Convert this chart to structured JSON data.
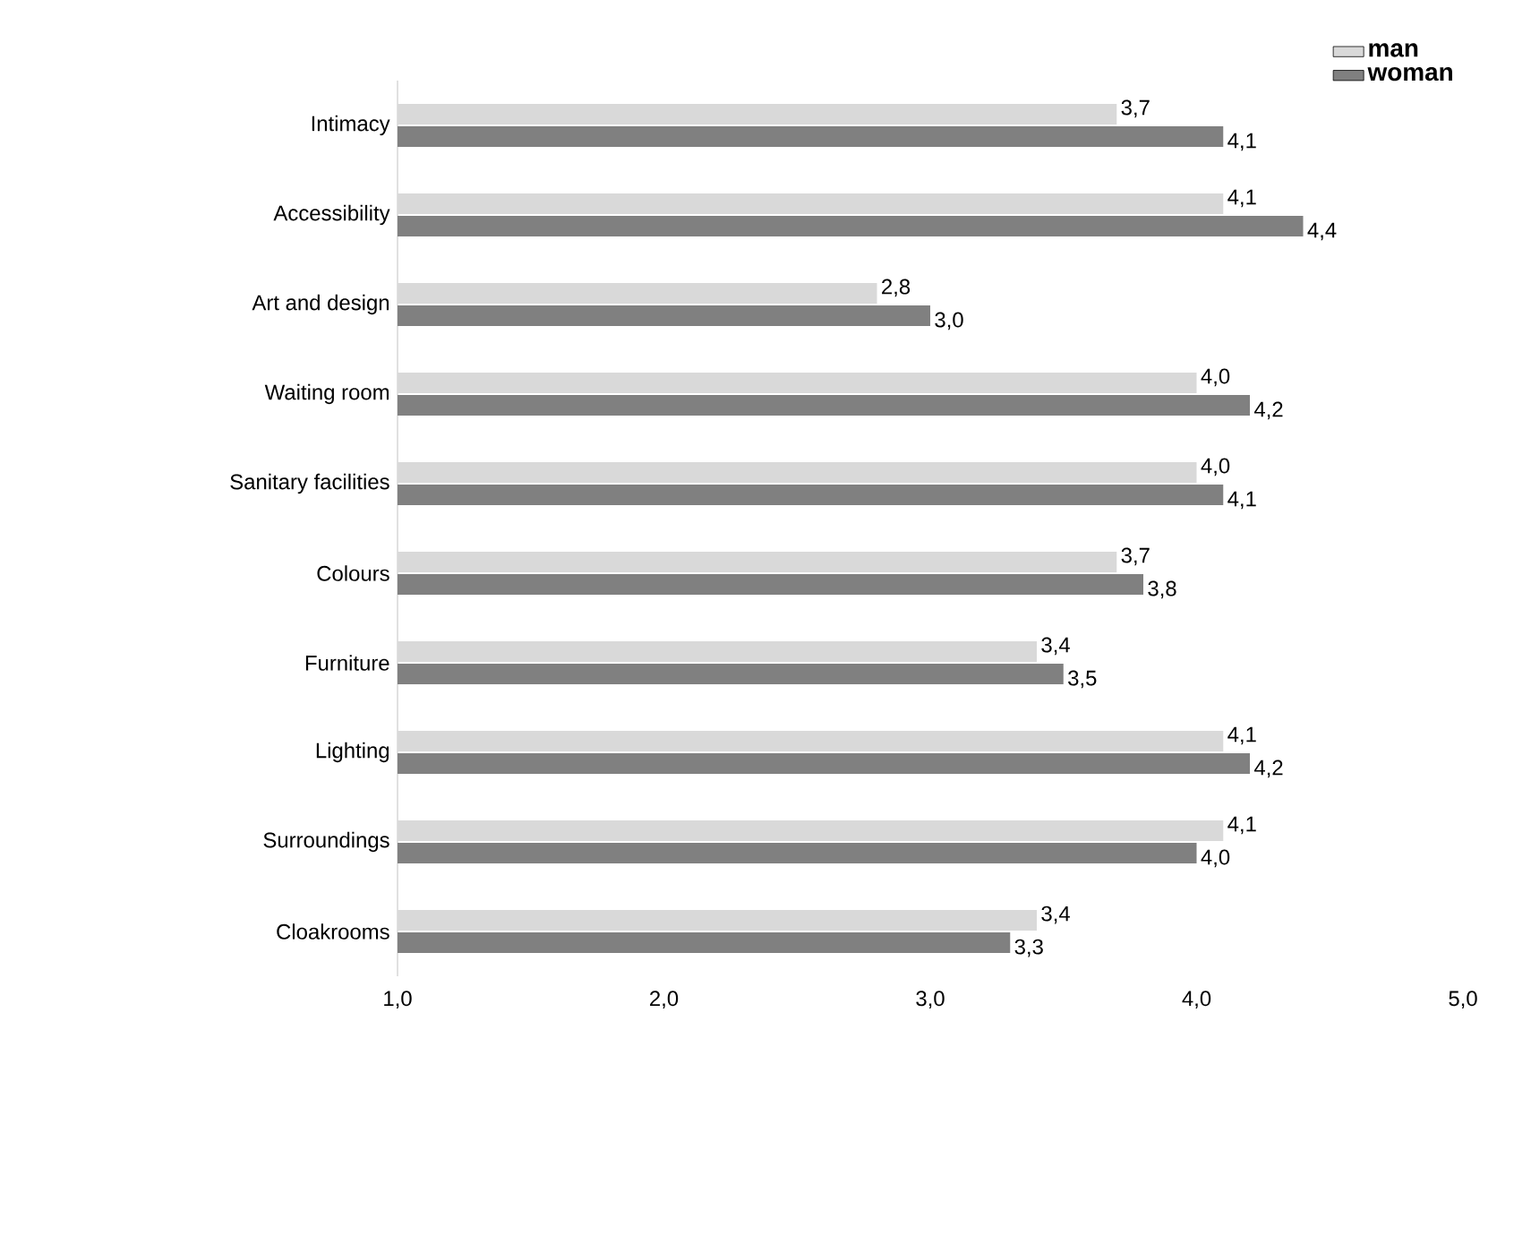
{
  "chart_data": {
    "type": "bar",
    "orientation": "horizontal",
    "categories": [
      "Intimacy",
      "Accessibility",
      "Art and design",
      "Waiting room",
      "Sanitary facilities",
      "Colours",
      "Furniture",
      "Lighting",
      "Surroundings",
      "Cloakrooms"
    ],
    "series": [
      {
        "name": "man",
        "color": "#d9d9d9",
        "values": [
          3.7,
          4.1,
          2.8,
          4.0,
          4.0,
          3.7,
          3.4,
          4.1,
          4.1,
          3.4
        ],
        "value_labels": [
          "3,7",
          "4,1",
          "2,8",
          "4,0",
          "4,0",
          "3,7",
          "3,4",
          "4,1",
          "4,1",
          "3,4"
        ]
      },
      {
        "name": "woman",
        "color": "#808080",
        "values": [
          4.1,
          4.4,
          3.0,
          4.2,
          4.1,
          3.8,
          3.5,
          4.2,
          4.0,
          3.3
        ],
        "value_labels": [
          "4,1",
          "4,4",
          "3,0",
          "4,2",
          "4,1",
          "3,8",
          "3,5",
          "4,2",
          "4,0",
          "3,3"
        ]
      }
    ],
    "xlim": [
      1,
      5
    ],
    "xticks": [
      {
        "value": 1,
        "label": "1,0"
      },
      {
        "value": 2,
        "label": "2,0"
      },
      {
        "value": 3,
        "label": "3,0"
      },
      {
        "value": 4,
        "label": "4,0"
      },
      {
        "value": 5,
        "label": "5,0"
      }
    ],
    "grid": false,
    "legend": "top right"
  }
}
